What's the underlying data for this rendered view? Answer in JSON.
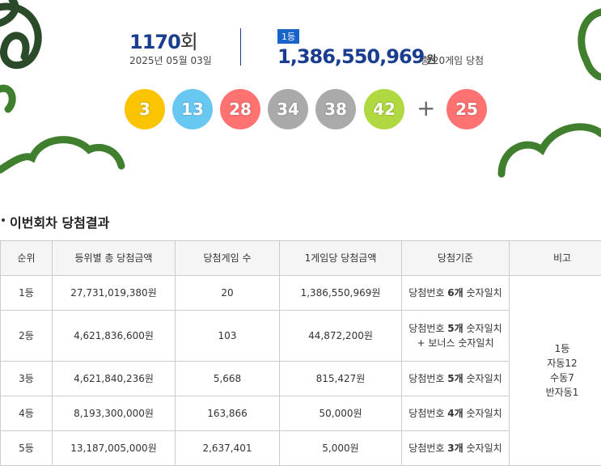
{
  "header": {
    "round_number": "1170",
    "round_unit": "회",
    "date": "2025년 05월 03일",
    "rank_badge": "1등",
    "prize": "1,386,550,969",
    "prize_unit": "원",
    "games": "총 20게임 당첨"
  },
  "balls": [
    {
      "number": "3",
      "color": "#fbc400"
    },
    {
      "number": "13",
      "color": "#69c8f2"
    },
    {
      "number": "28",
      "color": "#ff7272"
    },
    {
      "number": "34",
      "color": "#aaaaaa"
    },
    {
      "number": "38",
      "color": "#aaaaaa"
    },
    {
      "number": "42",
      "color": "#b0d840"
    }
  ],
  "plus": "+",
  "bonus": {
    "number": "25",
    "color": "#ff7272"
  },
  "section_title": "이번회차 당첨결과",
  "table": {
    "headers": [
      "순위",
      "등위별 총 당첨금액",
      "당첨게임 수",
      "1게임당 당첨금액",
      "당첨기준",
      "비고"
    ],
    "rows": [
      [
        "1등",
        "27,731,019,380원",
        "20",
        "1,386,550,969원",
        {
          "pre": "당첨번호",
          "count": "6개",
          "post": "숫자일치"
        }
      ],
      [
        "2등",
        "4,621,836,600원",
        "103",
        "44,872,200원",
        {
          "pre": "당첨번호",
          "count": "5개",
          "post": "숫자일치",
          "extra": "+ 보너스 숫자일치"
        }
      ],
      [
        "3등",
        "4,621,840,236원",
        "5,668",
        "815,427원",
        {
          "pre": "당첨번호",
          "count": "5개",
          "post": "숫자일치"
        }
      ],
      [
        "4등",
        "8,193,300,000원",
        "163,866",
        "50,000원",
        {
          "pre": "당첨번호",
          "count": "4개",
          "post": "숫자일치"
        }
      ],
      [
        "5등",
        "13,187,005,000원",
        "2,637,401",
        "5,000원",
        {
          "pre": "당첨번호",
          "count": "3개",
          "post": "숫자일치"
        }
      ]
    ],
    "remarks": [
      "1등",
      "자동12",
      "수동7",
      "반자동1"
    ]
  }
}
